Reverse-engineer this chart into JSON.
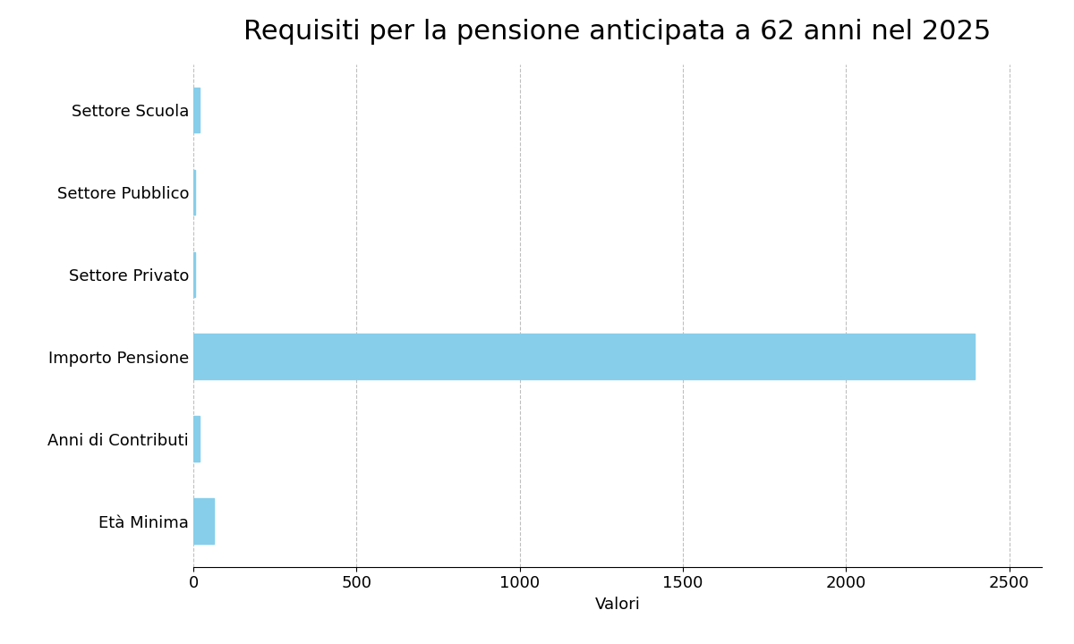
{
  "title": "Requisiti per la pensione anticipata a 62 anni nel 2025",
  "categories": [
    "Età Minima",
    "Anni di Contributi",
    "Importo Pensione",
    "Settore Privato",
    "Settore Pubblico",
    "Settore Scuola"
  ],
  "values": [
    62,
    20,
    2394,
    5,
    5,
    20
  ],
  "bar_color": "#87CEEB",
  "xlabel": "Valori",
  "ylabel": "",
  "xlim": [
    0,
    2600
  ],
  "xticks": [
    0,
    500,
    1000,
    1500,
    2000,
    2500
  ],
  "background_color": "#ffffff",
  "title_fontsize": 22,
  "label_fontsize": 13,
  "tick_fontsize": 13,
  "bar_height": 0.55
}
